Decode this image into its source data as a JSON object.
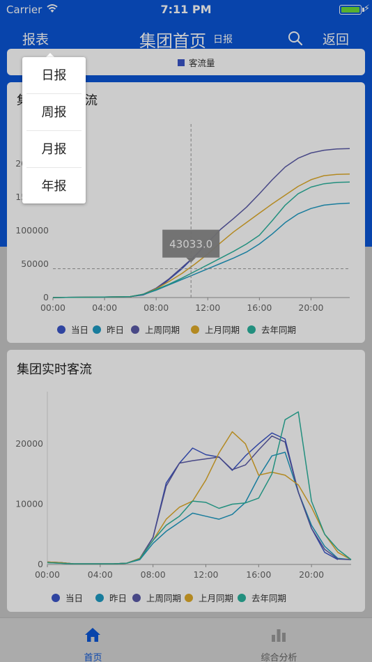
{
  "status_bar": {
    "carrier": "Carrier",
    "time": "7:11 PM"
  },
  "navbar": {
    "left_label": "报表",
    "title": "集团首页",
    "subtitle": "日报",
    "back_label": "返回"
  },
  "top_card": {
    "legend_label": "客流量"
  },
  "chart1": {
    "title_visible": "集",
    "title_tail": "流"
  },
  "chart2": {
    "title": "集团实时客流"
  },
  "tooltip": {
    "value": "43033.0"
  },
  "dropdown": {
    "items": [
      "日报",
      "周报",
      "月报",
      "年报"
    ]
  },
  "tabbar": {
    "tabs": [
      {
        "label": "首页",
        "icon": "home-icon",
        "active": true
      },
      {
        "label": "综合分析",
        "icon": "bar-chart-icon",
        "active": false
      }
    ]
  },
  "colors": {
    "brand": "#0a55d6",
    "today": "#3b56c9",
    "yesterday": "#1f9cc4",
    "last_week": "#5a5aa8",
    "last_month": "#e0ac2a",
    "last_year": "#2bb39e"
  },
  "legend": [
    "当日",
    "昨日",
    "上周同期",
    "上月同期",
    "去年同期"
  ],
  "chart_data": [
    {
      "type": "line",
      "title": "集团累计客流",
      "x_ticks": [
        "00:00",
        "04:00",
        "08:00",
        "12:00",
        "16:00",
        "20:00"
      ],
      "y_ticks": [
        "0",
        "50000",
        "100000",
        "150000",
        "200000"
      ],
      "ylim": [
        0,
        230000
      ],
      "x": [
        0,
        1,
        2,
        3,
        4,
        5,
        6,
        7,
        8,
        9,
        10,
        11,
        12,
        13,
        14,
        15,
        16,
        17,
        18,
        19,
        20,
        21,
        22,
        23
      ],
      "series": [
        {
          "name": "当日",
          "color": "#3b56c9",
          "values": [
            0,
            200,
            400,
            600,
            800,
            1000,
            1500,
            4000,
            12000,
            27000,
            43033,
            62000,
            82000,
            null,
            null,
            null,
            null,
            null,
            null,
            null,
            null,
            null,
            null,
            null
          ]
        },
        {
          "name": "昨日",
          "color": "#1f9cc4",
          "values": [
            0,
            200,
            400,
            600,
            800,
            1000,
            1500,
            4500,
            11000,
            19000,
            27000,
            35000,
            43000,
            51000,
            59000,
            68000,
            80000,
            95000,
            112000,
            125000,
            133000,
            138000,
            140000,
            141000
          ]
        },
        {
          "name": "上周同期",
          "color": "#5a5aa8",
          "values": [
            0,
            200,
            400,
            600,
            800,
            1000,
            1500,
            5000,
            14000,
            28000,
            45000,
            62000,
            82000,
            102000,
            118000,
            135000,
            155000,
            176000,
            195000,
            208000,
            216000,
            220000,
            222000,
            222500
          ]
        },
        {
          "name": "上月同期",
          "color": "#e0ac2a",
          "values": [
            0,
            200,
            400,
            600,
            800,
            1000,
            1500,
            5000,
            13000,
            24000,
            36000,
            50000,
            65000,
            82000,
            98000,
            112000,
            126000,
            140000,
            153000,
            166000,
            176000,
            182000,
            184000,
            184500
          ]
        },
        {
          "name": "去年同期",
          "color": "#2bb39e",
          "values": [
            0,
            200,
            400,
            600,
            800,
            1000,
            1500,
            5000,
            12000,
            20000,
            29000,
            39000,
            49000,
            59000,
            69000,
            80000,
            93000,
            115000,
            138000,
            155000,
            165000,
            170000,
            172000,
            172500
          ]
        }
      ]
    },
    {
      "type": "line",
      "title": "集团实时客流",
      "x_ticks": [
        "00:00",
        "04:00",
        "08:00",
        "12:00",
        "16:00",
        "20:00"
      ],
      "y_ticks": [
        "0",
        "10000",
        "20000"
      ],
      "ylim": [
        0,
        27500
      ],
      "x": [
        0,
        1,
        2,
        3,
        4,
        5,
        6,
        7,
        8,
        9,
        10,
        11,
        12,
        13,
        14,
        15,
        16,
        17,
        18,
        19,
        20,
        21,
        22,
        23
      ],
      "series": [
        {
          "name": "当日",
          "color": "#3b56c9",
          "values": [
            400,
            300,
            100,
            100,
            100,
            100,
            200,
            1000,
            4500,
            13500,
            16800,
            19300,
            18200,
            17800,
            15600,
            18000,
            20000,
            21800,
            20800,
            12000,
            6000,
            2000,
            800,
            null
          ]
        },
        {
          "name": "昨日",
          "color": "#1f9cc4",
          "values": [
            300,
            200,
            100,
            100,
            100,
            100,
            200,
            800,
            3500,
            5500,
            7000,
            8500,
            8000,
            7500,
            8300,
            10300,
            14500,
            18000,
            18600,
            12000,
            6500,
            3000,
            1000,
            800
          ]
        },
        {
          "name": "上周同期",
          "color": "#5a5aa8",
          "values": [
            400,
            300,
            100,
            100,
            100,
            100,
            200,
            1000,
            4500,
            13000,
            16800,
            17200,
            17500,
            17800,
            15700,
            16500,
            19000,
            21300,
            20300,
            12000,
            6000,
            2500,
            900,
            800
          ]
        },
        {
          "name": "上月同期",
          "color": "#e0ac2a",
          "values": [
            400,
            300,
            100,
            100,
            100,
            100,
            200,
            1000,
            4000,
            7500,
            9500,
            10500,
            14000,
            18500,
            22000,
            20000,
            14800,
            15300,
            14800,
            13200,
            9500,
            5000,
            2000,
            800
          ]
        },
        {
          "name": "去年同期",
          "color": "#2bb39e",
          "values": [
            300,
            200,
            100,
            100,
            100,
            100,
            200,
            900,
            4000,
            6500,
            8000,
            10500,
            10300,
            9300,
            10000,
            10200,
            11000,
            15000,
            24000,
            25300,
            10500,
            5000,
            2500,
            800
          ]
        }
      ]
    }
  ]
}
